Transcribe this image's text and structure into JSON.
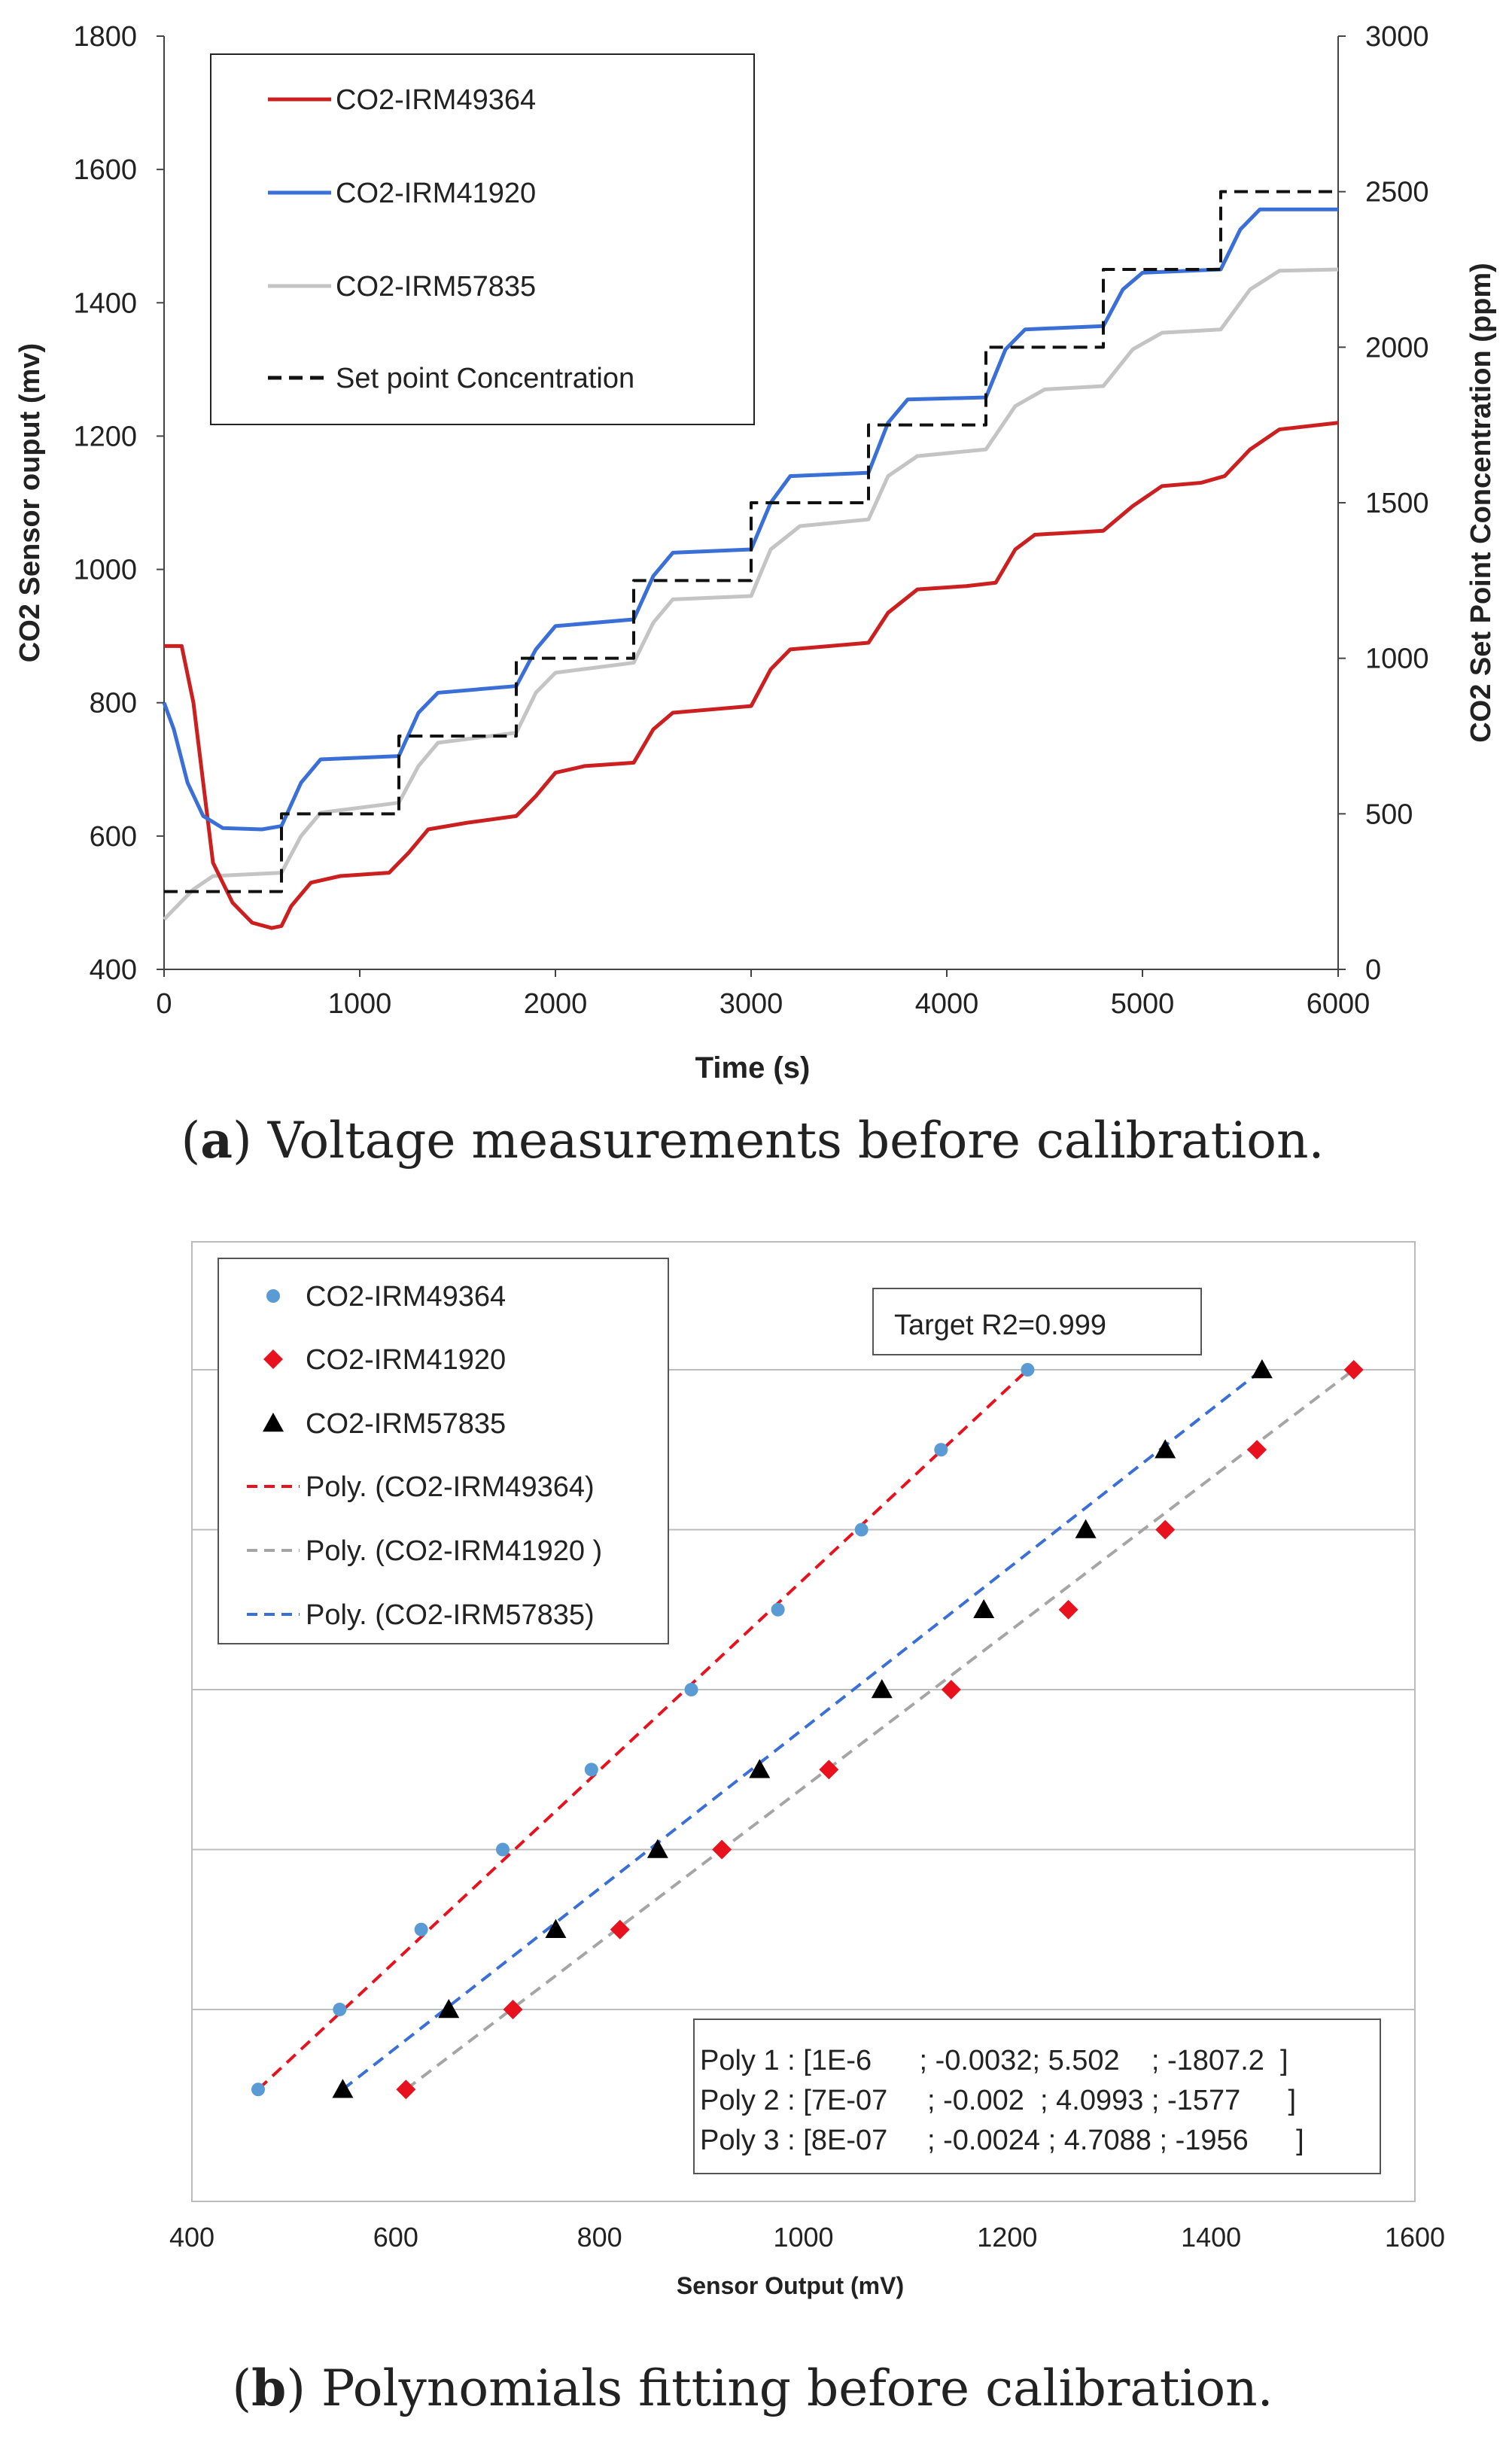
{
  "chart_data": [
    {
      "type": "line",
      "caption_label": "a",
      "caption_text": ") Voltage measurements before calibration.",
      "xlabel": "Time (s)",
      "ylabel": "CO2 Sensor ouput (mv)",
      "y2label": "CO2  Set Point Concentration (ppm)",
      "xlim": [
        0,
        6000
      ],
      "ylim": [
        400,
        1800
      ],
      "y2lim": [
        0,
        3000
      ],
      "xticks": [
        0,
        1000,
        2000,
        3000,
        4000,
        5000,
        6000
      ],
      "yticks": [
        400,
        600,
        800,
        1000,
        1200,
        1400,
        1600,
        1800
      ],
      "y2ticks": [
        0,
        500,
        1000,
        1500,
        2000,
        2500,
        3000
      ],
      "legend_position": "top-left",
      "series": [
        {
          "name": "CO2-IRM49364",
          "color": "#cc1f1f",
          "axis": "left",
          "points": [
            [
              0,
              885
            ],
            [
              90,
              885
            ],
            [
              150,
              800
            ],
            [
              250,
              560
            ],
            [
              350,
              500
            ],
            [
              450,
              470
            ],
            [
              550,
              462
            ],
            [
              600,
              465
            ],
            [
              650,
              495
            ],
            [
              750,
              530
            ],
            [
              900,
              540
            ],
            [
              1150,
              545
            ],
            [
              1250,
              575
            ],
            [
              1350,
              610
            ],
            [
              1550,
              620
            ],
            [
              1800,
              630
            ],
            [
              1900,
              660
            ],
            [
              2000,
              695
            ],
            [
              2150,
              705
            ],
            [
              2400,
              710
            ],
            [
              2500,
              760
            ],
            [
              2600,
              785
            ],
            [
              2800,
              790
            ],
            [
              3000,
              795
            ],
            [
              3100,
              850
            ],
            [
              3200,
              880
            ],
            [
              3600,
              890
            ],
            [
              3700,
              935
            ],
            [
              3850,
              970
            ],
            [
              4100,
              975
            ],
            [
              4250,
              980
            ],
            [
              4350,
              1030
            ],
            [
              4450,
              1052
            ],
            [
              4800,
              1058
            ],
            [
              4950,
              1095
            ],
            [
              5100,
              1125
            ],
            [
              5300,
              1130
            ],
            [
              5420,
              1140
            ],
            [
              5550,
              1180
            ],
            [
              5700,
              1210
            ],
            [
              6000,
              1220
            ]
          ]
        },
        {
          "name": "CO2-IRM41920",
          "color": "#3b6fd8",
          "axis": "left",
          "points": [
            [
              0,
              800
            ],
            [
              50,
              760
            ],
            [
              120,
              680
            ],
            [
              200,
              630
            ],
            [
              300,
              612
            ],
            [
              500,
              610
            ],
            [
              600,
              615
            ],
            [
              700,
              680
            ],
            [
              800,
              715
            ],
            [
              1200,
              720
            ],
            [
              1300,
              785
            ],
            [
              1400,
              815
            ],
            [
              1800,
              825
            ],
            [
              1900,
              880
            ],
            [
              2000,
              915
            ],
            [
              2400,
              925
            ],
            [
              2500,
              990
            ],
            [
              2600,
              1025
            ],
            [
              3000,
              1030
            ],
            [
              3100,
              1100
            ],
            [
              3200,
              1140
            ],
            [
              3600,
              1145
            ],
            [
              3700,
              1220
            ],
            [
              3800,
              1255
            ],
            [
              4200,
              1258
            ],
            [
              4300,
              1330
            ],
            [
              4400,
              1360
            ],
            [
              4800,
              1365
            ],
            [
              4900,
              1420
            ],
            [
              5000,
              1445
            ],
            [
              5400,
              1450
            ],
            [
              5500,
              1510
            ],
            [
              5600,
              1540
            ],
            [
              6000,
              1540
            ]
          ]
        },
        {
          "name": "CO2-IRM57835",
          "color": "#c4c4c4",
          "axis": "left",
          "points": [
            [
              0,
              475
            ],
            [
              50,
              490
            ],
            [
              150,
              520
            ],
            [
              250,
              540
            ],
            [
              600,
              545
            ],
            [
              700,
              600
            ],
            [
              800,
              635
            ],
            [
              1200,
              650
            ],
            [
              1300,
              705
            ],
            [
              1400,
              740
            ],
            [
              1800,
              755
            ],
            [
              1900,
              815
            ],
            [
              2000,
              845
            ],
            [
              2400,
              860
            ],
            [
              2500,
              920
            ],
            [
              2600,
              955
            ],
            [
              3000,
              960
            ],
            [
              3100,
              1030
            ],
            [
              3250,
              1065
            ],
            [
              3600,
              1075
            ],
            [
              3700,
              1140
            ],
            [
              3850,
              1170
            ],
            [
              4200,
              1180
            ],
            [
              4350,
              1245
            ],
            [
              4500,
              1270
            ],
            [
              4800,
              1275
            ],
            [
              4950,
              1330
            ],
            [
              5100,
              1355
            ],
            [
              5400,
              1360
            ],
            [
              5550,
              1420
            ],
            [
              5700,
              1448
            ],
            [
              6000,
              1450
            ]
          ]
        },
        {
          "name": "Set point Concentration",
          "color": "#111111",
          "dashed": true,
          "axis": "right",
          "steps": [
            [
              0,
              250
            ],
            [
              600,
              500
            ],
            [
              1200,
              750
            ],
            [
              1800,
              1000
            ],
            [
              2400,
              1250
            ],
            [
              3000,
              1500
            ],
            [
              3600,
              1750
            ],
            [
              4200,
              2000
            ],
            [
              4800,
              2250
            ],
            [
              5400,
              2500
            ],
            [
              6000,
              2500
            ]
          ]
        }
      ]
    },
    {
      "type": "scatter",
      "caption_label": "b",
      "caption_text": ") Polynomials fitting before calibration.",
      "xlabel": "Sensor Output (mV)",
      "xlim": [
        400,
        1600
      ],
      "xticks": [
        400,
        600,
        800,
        1000,
        1200,
        1400,
        1600
      ],
      "setpoints": [
        250,
        500,
        750,
        1000,
        1250,
        1500,
        1750,
        2000,
        2250,
        2500
      ],
      "ylim": [
        -100,
        2900
      ],
      "gridlines": [
        500,
        1000,
        1500,
        2000,
        2500
      ],
      "legend_position": "top-left",
      "series": [
        {
          "name": "CO2-IRM49364",
          "marker": "circle",
          "color": "#5b9bd5",
          "x": [
            465,
            545,
            625,
            705,
            792,
            890,
            975,
            1057,
            1135,
            1220
          ]
        },
        {
          "name": "CO2-IRM41920",
          "marker": "diamond",
          "color": "#e8121e",
          "x": [
            610,
            715,
            820,
            920,
            1025,
            1145,
            1260,
            1355,
            1445,
            1540
          ]
        },
        {
          "name": "CO2-IRM57835",
          "marker": "triangle",
          "color": "#000000",
          "x": [
            548,
            652,
            757,
            857,
            957,
            1077,
            1177,
            1277,
            1355,
            1450
          ]
        }
      ],
      "fits": [
        {
          "name": "Poly. (CO2-IRM49364)",
          "color": "#e8121e",
          "x0": 465,
          "x1": 1220
        },
        {
          "name": "Poly. (CO2-IRM41920 )",
          "color": "#a5a5a5",
          "x0": 610,
          "x1": 1540
        },
        {
          "name": "Poly. (CO2-IRM57835)",
          "color": "#3b6fd8",
          "x0": 548,
          "x1": 1450
        }
      ],
      "annotations": {
        "target": "Target R2=0.999",
        "poly_lines": [
          "Poly 1 : [1E-6      ; -0.0032; 5.502    ; -1807.2  ]",
          "Poly 2 : [7E-07     ; -0.002  ; 4.0993 ; -1577      ]",
          "Poly 3 : [8E-07     ; -0.0024 ; 4.7088 ; -1956      ]"
        ]
      }
    }
  ]
}
